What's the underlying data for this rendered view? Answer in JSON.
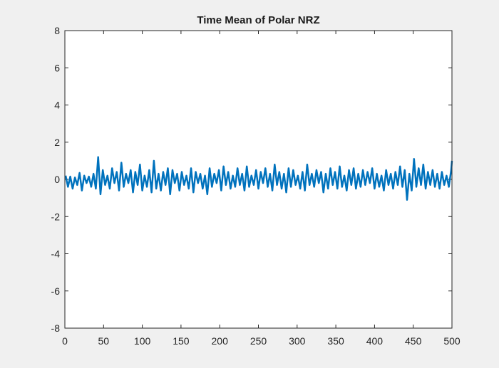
{
  "chart_data": {
    "type": "line",
    "title": "Time Mean of Polar NRZ",
    "xlabel": "",
    "ylabel": "",
    "xlim": [
      0,
      500
    ],
    "ylim": [
      -8,
      8
    ],
    "xticks": [
      "0",
      "50",
      "100",
      "150",
      "200",
      "250",
      "300",
      "350",
      "400",
      "450",
      "500"
    ],
    "yticks": [
      "-8",
      "-6",
      "-4",
      "-2",
      "0",
      "2",
      "4",
      "6",
      "8"
    ],
    "grid": false,
    "legend": "none",
    "colors": {
      "line": "#0072bd",
      "axes": "#262626",
      "plot_bg": "#ffffff",
      "figure_bg": "#f0f0f0"
    },
    "series": [
      {
        "x": [
          1,
          4,
          7,
          10,
          13,
          16,
          19,
          22,
          25,
          28,
          31,
          34,
          37,
          40,
          43,
          46,
          49,
          52,
          55,
          58,
          61,
          64,
          67,
          70,
          73,
          76,
          79,
          82,
          85,
          88,
          91,
          94,
          97,
          100,
          103,
          106,
          109,
          112,
          115,
          118,
          121,
          124,
          127,
          130,
          133,
          136,
          139,
          142,
          145,
          148,
          151,
          154,
          157,
          160,
          163,
          166,
          169,
          172,
          175,
          178,
          181,
          184,
          187,
          190,
          193,
          196,
          199,
          202,
          205,
          208,
          211,
          214,
          217,
          220,
          223,
          226,
          229,
          232,
          235,
          238,
          241,
          244,
          247,
          250,
          253,
          256,
          259,
          262,
          265,
          268,
          271,
          274,
          277,
          280,
          283,
          286,
          289,
          292,
          295,
          298,
          301,
          304,
          307,
          310,
          313,
          316,
          319,
          322,
          325,
          328,
          331,
          334,
          337,
          340,
          343,
          346,
          349,
          352,
          355,
          358,
          361,
          364,
          367,
          370,
          373,
          376,
          379,
          382,
          385,
          388,
          391,
          394,
          397,
          400,
          403,
          406,
          409,
          412,
          415,
          418,
          421,
          424,
          427,
          430,
          433,
          436,
          439,
          442,
          445,
          448,
          451,
          454,
          457,
          460,
          463,
          466,
          469,
          472,
          475,
          478,
          481,
          484,
          487,
          490,
          493,
          496,
          499,
          500
        ],
        "y": [
          0.2,
          -0.4,
          0.15,
          -0.5,
          0.1,
          -0.3,
          0.35,
          -0.6,
          0.2,
          -0.2,
          0.15,
          -0.4,
          0.3,
          -0.5,
          1.2,
          -0.8,
          0.5,
          -0.3,
          0.2,
          -0.5,
          0.6,
          -0.2,
          0.4,
          -0.6,
          0.9,
          -0.4,
          0.3,
          -0.2,
          0.5,
          -0.7,
          0.4,
          -0.3,
          0.8,
          -0.6,
          0.2,
          -0.4,
          0.5,
          -0.7,
          1.0,
          -0.5,
          0.3,
          -0.6,
          0.4,
          -0.3,
          0.6,
          -0.8,
          0.5,
          -0.2,
          0.3,
          -0.6,
          0.4,
          -0.3,
          0.2,
          -0.5,
          0.6,
          -0.7,
          0.4,
          -0.2,
          0.3,
          -0.5,
          0.2,
          -0.8,
          0.6,
          -0.4,
          0.3,
          -0.2,
          0.5,
          -0.6,
          0.7,
          -0.3,
          0.4,
          -0.5,
          0.2,
          -0.4,
          0.6,
          -0.3,
          0.3,
          -0.6,
          0.7,
          -0.4,
          0.2,
          -0.3,
          0.5,
          -0.5,
          0.4,
          -0.2,
          0.6,
          -0.4,
          0.3,
          -0.6,
          0.8,
          -0.3,
          0.4,
          -0.5,
          0.3,
          -0.7,
          0.6,
          -0.4,
          0.5,
          -0.3,
          0.2,
          -0.5,
          0.4,
          -0.6,
          0.8,
          -0.3,
          0.3,
          -0.4,
          0.5,
          -0.2,
          0.4,
          -0.7,
          0.3,
          -0.5,
          0.6,
          -0.3,
          0.4,
          -0.5,
          0.7,
          -0.4,
          0.2,
          -0.6,
          0.5,
          -0.3,
          0.6,
          -0.5,
          0.3,
          -0.4,
          0.5,
          -0.3,
          0.4,
          -0.2,
          0.6,
          -0.5,
          0.3,
          -0.4,
          0.2,
          -0.6,
          0.5,
          -0.3,
          0.3,
          -0.5,
          0.4,
          -0.3,
          0.7,
          -0.4,
          0.5,
          -1.1,
          0.3,
          -0.6,
          1.1,
          -0.4,
          0.6,
          -0.3,
          0.8,
          -0.5,
          0.4,
          -0.3,
          0.5,
          -0.4,
          0.3,
          -0.5,
          0.4,
          -0.3,
          0.2,
          -0.4,
          0.5,
          1.0
        ]
      }
    ]
  }
}
